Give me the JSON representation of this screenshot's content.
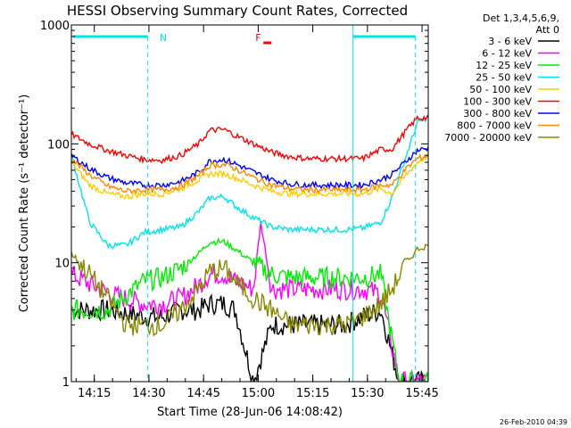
{
  "chart_data": {
    "type": "line",
    "title": "HESSI Observing Summary Count Rates, Corrected",
    "xlabel": "Start Time (28-Jun-06 14:08:42)",
    "ylabel": "Corrected Count Rate (s⁻¹ detector⁻¹)",
    "yscale": "log",
    "ylim": [
      1,
      1000
    ],
    "xlim_minutes": [
      0,
      98
    ],
    "x_ticks": [
      {
        "label": "14:15",
        "minute": 6.3
      },
      {
        "label": "14:30",
        "minute": 21.3
      },
      {
        "label": "14:45",
        "minute": 36.3
      },
      {
        "label": "15:00",
        "minute": 51.3
      },
      {
        "label": "15:15",
        "minute": 66.3
      },
      {
        "label": "15:30",
        "minute": 81.3
      },
      {
        "label": "15:45",
        "minute": 96.3
      }
    ],
    "y_ticks": [
      {
        "label": "1000",
        "value": 1000
      },
      {
        "label": "100",
        "value": 100
      },
      {
        "label": "10",
        "value": 10
      },
      {
        "label": "1",
        "value": 1
      }
    ],
    "legend_header": [
      "Det 1,3,4,5,6,9,",
      "Att 0"
    ],
    "legend_position": "right",
    "grid": false,
    "annotations": [
      {
        "label": "N",
        "minute": 23.5,
        "color": "#00e5e5"
      },
      {
        "label": "F",
        "minute": 52.0,
        "color": "#ff0000"
      }
    ],
    "night_start_minute": 21.0,
    "night_end_minute": 94.5,
    "series": [
      {
        "name": "3 - 6 keV",
        "color": "#000000",
        "x": [
          0,
          10,
          21,
          25,
          30,
          35,
          38,
          42,
          45,
          50,
          55,
          60,
          65,
          70,
          75,
          80,
          85,
          90,
          95,
          98
        ],
        "y": [
          4,
          4,
          3.5,
          3.5,
          4,
          4,
          4.5,
          4.5,
          4,
          1,
          3,
          3,
          3,
          3,
          3,
          3.5,
          4,
          1,
          1,
          1
        ]
      },
      {
        "name": "6 - 12 keV",
        "color": "#ff00ff",
        "x": [
          0,
          10,
          20,
          25,
          30,
          35,
          38,
          42,
          45,
          50,
          52,
          55,
          60,
          65,
          70,
          75,
          80,
          85,
          90,
          95,
          98
        ],
        "y": [
          8,
          5.5,
          4.5,
          4.5,
          5,
          6.5,
          8,
          8,
          7,
          6,
          22,
          6,
          6,
          6,
          6,
          6,
          6,
          5.5,
          1,
          1,
          1
        ]
      },
      {
        "name": "12 - 25 keV",
        "color": "#00ee00",
        "x": [
          0,
          10,
          20,
          25,
          30,
          35,
          38,
          42,
          45,
          50,
          55,
          60,
          65,
          70,
          75,
          80,
          85,
          90,
          95,
          98
        ],
        "y": [
          4,
          4,
          7,
          7.5,
          9,
          12,
          15,
          15,
          13,
          10,
          8,
          7.5,
          7.5,
          7.5,
          7.5,
          7.5,
          8,
          1,
          1,
          1
        ]
      },
      {
        "name": "25 - 50 keV",
        "color": "#00e5e5",
        "x": [
          0,
          5,
          10,
          15,
          20,
          25,
          30,
          35,
          38,
          42,
          45,
          50,
          55,
          60,
          65,
          70,
          75,
          80,
          85,
          88,
          92,
          95,
          98
        ],
        "y": [
          80,
          22,
          14,
          14,
          18,
          19,
          20,
          27,
          35,
          36,
          30,
          24,
          20,
          19,
          19,
          19,
          19,
          19.5,
          22,
          35,
          80,
          150,
          170
        ]
      },
      {
        "name": "50 - 100 keV",
        "color": "#ffcc00",
        "x": [
          0,
          5,
          10,
          15,
          20,
          25,
          30,
          35,
          38,
          42,
          45,
          50,
          55,
          60,
          65,
          70,
          75,
          80,
          85,
          88,
          92,
          95,
          98
        ],
        "y": [
          70,
          45,
          38,
          36,
          38,
          38,
          42,
          50,
          56,
          56,
          52,
          45,
          40,
          38,
          38,
          38,
          38,
          38,
          42,
          38,
          55,
          70,
          80
        ]
      },
      {
        "name": "100 - 300 keV",
        "color": "#ff0000",
        "x": [
          0,
          5,
          10,
          15,
          20,
          25,
          30,
          35,
          38,
          42,
          45,
          50,
          55,
          60,
          65,
          70,
          75,
          80,
          85,
          88,
          92,
          95,
          98
        ],
        "y": [
          120,
          100,
          88,
          80,
          74,
          73,
          80,
          100,
          130,
          132,
          118,
          100,
          85,
          78,
          75,
          75,
          75,
          75,
          90,
          90,
          130,
          165,
          165
        ]
      },
      {
        "name": "300 - 800 keV",
        "color": "#0000ff",
        "x": [
          0,
          5,
          10,
          15,
          20,
          25,
          30,
          35,
          38,
          42,
          45,
          50,
          55,
          60,
          65,
          70,
          75,
          80,
          85,
          88,
          92,
          95,
          98
        ],
        "y": [
          80,
          62,
          52,
          47,
          45,
          45,
          48,
          58,
          72,
          74,
          68,
          58,
          50,
          46,
          45,
          45,
          45,
          45,
          50,
          55,
          72,
          88,
          92
        ]
      },
      {
        "name": "800 - 7000 keV",
        "color": "#ff8800",
        "x": [
          0,
          5,
          10,
          15,
          20,
          25,
          30,
          35,
          38,
          42,
          45,
          50,
          55,
          60,
          65,
          70,
          75,
          80,
          85,
          88,
          92,
          95,
          98
        ],
        "y": [
          75,
          55,
          44,
          40,
          41,
          41,
          44,
          54,
          66,
          67,
          62,
          52,
          45,
          42,
          41,
          41,
          41,
          41,
          45,
          45,
          62,
          75,
          80
        ]
      },
      {
        "name": "7000 - 20000 keV",
        "color": "#888800",
        "x": [
          0,
          5,
          10,
          15,
          20,
          25,
          30,
          35,
          38,
          42,
          45,
          50,
          55,
          60,
          65,
          70,
          75,
          80,
          85,
          88,
          92,
          95,
          98
        ],
        "y": [
          12,
          8,
          5,
          3,
          3,
          3,
          4,
          6,
          8.5,
          9,
          7,
          5,
          4,
          3,
          3,
          3,
          3,
          3.5,
          4.5,
          6,
          10,
          13,
          14
        ]
      }
    ]
  },
  "footer": {
    "timestamp": "26-Feb-2010 04:39"
  }
}
